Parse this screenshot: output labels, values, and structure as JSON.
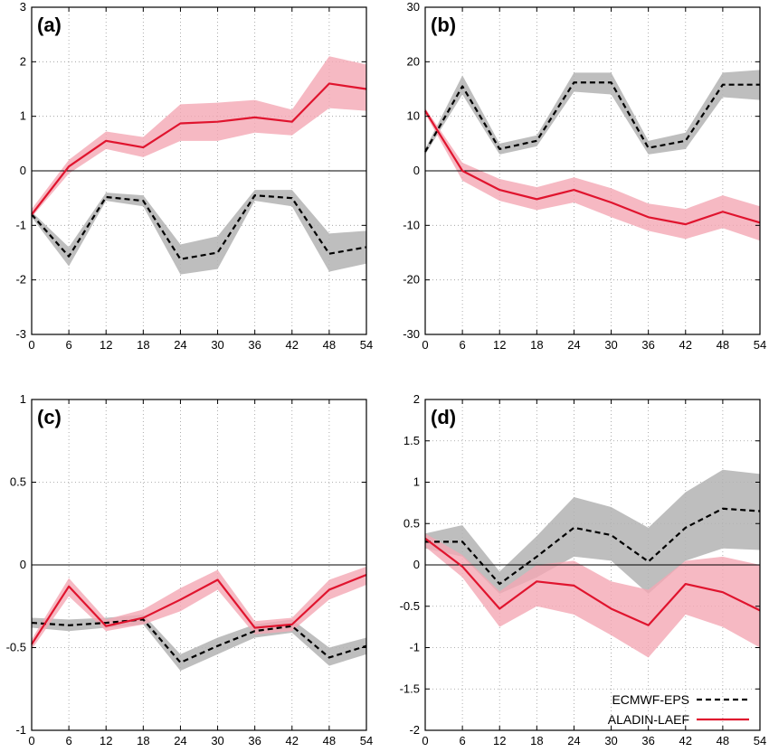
{
  "colors": {
    "ecmwf_line": "#000000",
    "ecmwf_band": "#b3b3b3",
    "aladin_line": "#e0142e",
    "aladin_band": "#f4a7b4"
  },
  "legend": {
    "placement": "bottom-right of panel (d)",
    "entries": [
      "ECMWF-EPS",
      "ALADIN-LAEF"
    ]
  },
  "chart_data": [
    {
      "type": "line",
      "label": "(a)",
      "x": [
        0,
        6,
        12,
        18,
        24,
        30,
        36,
        42,
        48,
        54
      ],
      "xticks": [
        "0",
        "6",
        "12",
        "18",
        "24",
        "30",
        "36",
        "42",
        "48",
        "54"
      ],
      "xlim": [
        0,
        54
      ],
      "ylim": [
        -3,
        3
      ],
      "yticks": [
        -3,
        -2,
        -1,
        0,
        1,
        2,
        3
      ],
      "ytick_labels": [
        "-3",
        "-2",
        "-1",
        "0",
        "1",
        "2",
        "3"
      ],
      "grid": true,
      "series": [
        {
          "name": "ECMWF-EPS",
          "style": "dashed",
          "values": [
            -0.8,
            -1.57,
            -0.48,
            -0.55,
            -1.62,
            -1.5,
            -0.45,
            -0.5,
            -1.52,
            -1.4
          ],
          "band_low": [
            -0.85,
            -1.75,
            -0.55,
            -0.65,
            -1.9,
            -1.8,
            -0.55,
            -0.65,
            -1.85,
            -1.7
          ],
          "band_high": [
            -0.75,
            -1.4,
            -0.4,
            -0.45,
            -1.35,
            -1.2,
            -0.35,
            -0.35,
            -1.15,
            -1.1
          ]
        },
        {
          "name": "ALADIN-LAEF",
          "style": "solid",
          "values": [
            -0.8,
            0.08,
            0.55,
            0.43,
            0.87,
            0.9,
            0.98,
            0.9,
            1.6,
            1.5
          ],
          "band_low": [
            -0.85,
            -0.05,
            0.4,
            0.25,
            0.55,
            0.55,
            0.7,
            0.65,
            1.15,
            1.1
          ],
          "band_high": [
            -0.7,
            0.2,
            0.72,
            0.62,
            1.22,
            1.25,
            1.3,
            1.12,
            2.1,
            1.95
          ]
        }
      ]
    },
    {
      "type": "line",
      "label": "(b)",
      "x": [
        0,
        6,
        12,
        18,
        24,
        30,
        36,
        42,
        48,
        54
      ],
      "xticks": [
        "0",
        "6",
        "12",
        "18",
        "24",
        "30",
        "36",
        "42",
        "48",
        "54"
      ],
      "xlim": [
        0,
        54
      ],
      "ylim": [
        -30,
        30
      ],
      "yticks": [
        -30,
        -20,
        -10,
        0,
        10,
        20,
        30
      ],
      "ytick_labels": [
        "-30",
        "-20",
        "-10",
        "0",
        "10",
        "20",
        "30"
      ],
      "grid": true,
      "series": [
        {
          "name": "ECMWF-EPS",
          "style": "dashed",
          "values": [
            3.5,
            15.5,
            4,
            5.5,
            16.2,
            16.2,
            4.2,
            5.5,
            15.8,
            15.8
          ],
          "band_low": [
            3,
            14,
            3,
            4.5,
            14.5,
            14,
            3,
            4,
            13.5,
            13
          ],
          "band_high": [
            4,
            17.5,
            5,
            6.5,
            18,
            18,
            5.5,
            7,
            18,
            18.5
          ]
        },
        {
          "name": "ALADIN-LAEF",
          "style": "solid",
          "values": [
            11,
            0,
            -3.5,
            -5.2,
            -3.5,
            -5.8,
            -8.5,
            -9.8,
            -7.5,
            -9.5
          ],
          "band_low": [
            10.5,
            -1.8,
            -5.5,
            -7.2,
            -5.8,
            -8.5,
            -11,
            -12.5,
            -10.5,
            -12.8
          ],
          "band_high": [
            11.5,
            1.5,
            -1.5,
            -3,
            -1.2,
            -3.2,
            -6,
            -7,
            -4.5,
            -6.5
          ]
        }
      ]
    },
    {
      "type": "line",
      "label": "(c)",
      "x": [
        0,
        6,
        12,
        18,
        24,
        30,
        36,
        42,
        48,
        54
      ],
      "xticks": [
        "0",
        "6",
        "12",
        "18",
        "24",
        "30",
        "36",
        "42",
        "48",
        "54"
      ],
      "xlim": [
        0,
        54
      ],
      "ylim": [
        -1,
        1
      ],
      "yticks": [
        -1,
        -0.5,
        0,
        0.5,
        1
      ],
      "ytick_labels": [
        "-1",
        "-0.5",
        "0",
        "0.5",
        "1"
      ],
      "grid": true,
      "series": [
        {
          "name": "ECMWF-EPS",
          "style": "dashed",
          "values": [
            -0.35,
            -0.365,
            -0.35,
            -0.33,
            -0.59,
            -0.49,
            -0.4,
            -0.37,
            -0.56,
            -0.49
          ],
          "band_low": [
            -0.38,
            -0.4,
            -0.38,
            -0.36,
            -0.64,
            -0.54,
            -0.44,
            -0.41,
            -0.61,
            -0.54
          ],
          "band_high": [
            -0.32,
            -0.33,
            -0.32,
            -0.3,
            -0.54,
            -0.44,
            -0.36,
            -0.33,
            -0.5,
            -0.44
          ]
        },
        {
          "name": "ALADIN-LAEF",
          "style": "solid",
          "values": [
            -0.48,
            -0.13,
            -0.37,
            -0.32,
            -0.21,
            -0.09,
            -0.38,
            -0.36,
            -0.15,
            -0.06
          ],
          "band_low": [
            -0.51,
            -0.19,
            -0.4,
            -0.36,
            -0.28,
            -0.15,
            -0.42,
            -0.4,
            -0.21,
            -0.12
          ],
          "band_high": [
            -0.45,
            -0.08,
            -0.33,
            -0.27,
            -0.14,
            -0.03,
            -0.34,
            -0.32,
            -0.09,
            -0.01
          ]
        }
      ]
    },
    {
      "type": "line",
      "label": "(d)",
      "x": [
        0,
        6,
        12,
        18,
        24,
        30,
        36,
        42,
        48,
        54
      ],
      "xticks": [
        "0",
        "6",
        "12",
        "18",
        "24",
        "30",
        "36",
        "42",
        "48",
        "54"
      ],
      "xlim": [
        0,
        54
      ],
      "ylim": [
        -2,
        2
      ],
      "yticks": [
        -2,
        -1.5,
        -1,
        -0.5,
        0,
        0.5,
        1,
        1.5,
        2
      ],
      "ytick_labels": [
        "-2",
        "-1.5",
        "-1",
        "-0.5",
        "0",
        "0.5",
        "1",
        "1.5",
        "2"
      ],
      "grid": true,
      "series": [
        {
          "name": "ECMWF-EPS",
          "style": "dashed",
          "values": [
            0.28,
            0.28,
            -0.23,
            0.1,
            0.45,
            0.36,
            0.04,
            0.45,
            0.68,
            0.65
          ],
          "band_low": [
            0.2,
            0.1,
            -0.35,
            -0.15,
            0.1,
            0.05,
            -0.35,
            0.05,
            0.2,
            0.18
          ],
          "band_high": [
            0.38,
            0.48,
            -0.08,
            0.35,
            0.82,
            0.7,
            0.45,
            0.88,
            1.15,
            1.1
          ]
        },
        {
          "name": "ALADIN-LAEF",
          "style": "solid",
          "values": [
            0.32,
            -0.02,
            -0.53,
            -0.2,
            -0.25,
            -0.53,
            -0.73,
            -0.23,
            -0.33,
            -0.55
          ],
          "band_low": [
            0.22,
            -0.15,
            -0.75,
            -0.5,
            -0.6,
            -0.85,
            -1.12,
            -0.6,
            -0.75,
            -1.0
          ],
          "band_high": [
            0.38,
            0.12,
            -0.32,
            0.0,
            0.05,
            -0.2,
            -0.3,
            0.05,
            0.1,
            0.0
          ]
        }
      ]
    }
  ]
}
